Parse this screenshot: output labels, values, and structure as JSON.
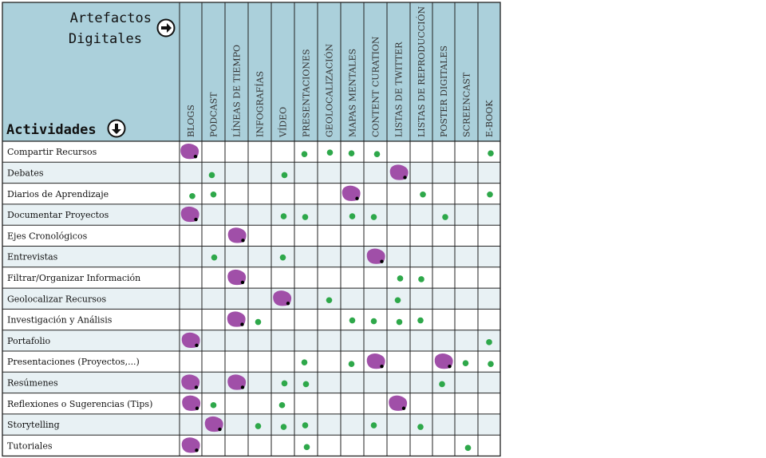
{
  "header": {
    "title_line1": "Artefactos",
    "title_line2": "Digitales",
    "activities_label": "Actividades"
  },
  "colors": {
    "header_bg": "#abd0db",
    "row_alt_bg": "#e8f1f4",
    "grid_line": "#222222",
    "dot": "#2ea84a",
    "blob": "#a04fa8",
    "blob_edge": "#000000"
  },
  "icons": {
    "artefactos": "right-arrow-circle-icon",
    "actividades": "down-arrow-circle-icon"
  },
  "columns": [
    "BLOGS",
    "PODCAST",
    "LÍNEAS DE TIEMPO",
    "INFOGRAFÍAS",
    "VÍDEO",
    "PRESENTACIONES",
    "GEOLOCALIZACIÓN",
    "MAPAS MENTALES",
    "CONTENT CURATION",
    "LISTAS DE TWITTER",
    "LISTAS DE REPRODUCCIÓN",
    "POSTER DIGITALES",
    "SCREENCAST",
    "E-BOOK"
  ],
  "rows": [
    {
      "label": "Compartir Recursos",
      "marks": [
        "B",
        "",
        "",
        "",
        "",
        "D",
        "D",
        "D",
        "D",
        "",
        "",
        "",
        "",
        "D"
      ]
    },
    {
      "label": "Debates",
      "marks": [
        "",
        "D",
        "",
        "",
        "D",
        "",
        "",
        "",
        "",
        "B",
        "",
        "",
        "",
        ""
      ]
    },
    {
      "label": "Diarios de Aprendizaje",
      "marks": [
        "D",
        "D",
        "",
        "",
        "",
        "",
        "",
        "B",
        "",
        "",
        "D",
        "",
        "",
        "D"
      ]
    },
    {
      "label": "Documentar Proyectos",
      "marks": [
        "B",
        "",
        "",
        "",
        "D",
        "D",
        "",
        "D",
        "D",
        "",
        "",
        "D",
        "",
        ""
      ]
    },
    {
      "label": "Ejes Cronológicos",
      "marks": [
        "",
        "",
        "B",
        "",
        "",
        "",
        "",
        "",
        "",
        "",
        "",
        "",
        "",
        ""
      ]
    },
    {
      "label": "Entrevistas",
      "marks": [
        "",
        "D",
        "",
        "",
        "D",
        "",
        "",
        "",
        "B",
        "",
        "",
        "",
        "",
        ""
      ]
    },
    {
      "label": "Filtrar/Organizar Información",
      "marks": [
        "",
        "",
        "B",
        "",
        "",
        "",
        "",
        "",
        "",
        "D",
        "D",
        "",
        "",
        ""
      ]
    },
    {
      "label": "Geolocalizar Recursos",
      "marks": [
        "",
        "",
        "",
        "",
        "B",
        "",
        "D",
        "",
        "",
        "D",
        "",
        "",
        "",
        ""
      ]
    },
    {
      "label": "Investigación y Análisis",
      "marks": [
        "",
        "",
        "B",
        "D",
        "",
        "",
        "",
        "D",
        "D",
        "D",
        "D",
        "",
        "",
        ""
      ]
    },
    {
      "label": "Portafolio",
      "marks": [
        "B",
        "",
        "",
        "",
        "",
        "",
        "",
        "",
        "",
        "",
        "",
        "",
        "",
        "D"
      ]
    },
    {
      "label": "Presentaciones (Proyectos,...)",
      "marks": [
        "",
        "",
        "",
        "",
        "",
        "D",
        "",
        "D",
        "B",
        "",
        "",
        "B",
        "D",
        "D"
      ]
    },
    {
      "label": "Resúmenes",
      "marks": [
        "B",
        "",
        "B",
        "",
        "D",
        "D",
        "",
        "",
        "",
        "",
        "",
        "D",
        "",
        ""
      ]
    },
    {
      "label": "Reflexiones o Sugerencias (Tips)",
      "marks": [
        "B",
        "D",
        "",
        "",
        "D",
        "",
        "",
        "",
        "",
        "B",
        "",
        "",
        "",
        ""
      ]
    },
    {
      "label": "Storytelling",
      "marks": [
        "",
        "B",
        "",
        "D",
        "D",
        "D",
        "",
        "",
        "D",
        "",
        "D",
        "",
        "",
        ""
      ]
    },
    {
      "label": "Tutoriales",
      "marks": [
        "B",
        "",
        "",
        "",
        "",
        "D",
        "",
        "",
        "",
        "",
        "",
        "",
        "D",
        ""
      ]
    }
  ]
}
